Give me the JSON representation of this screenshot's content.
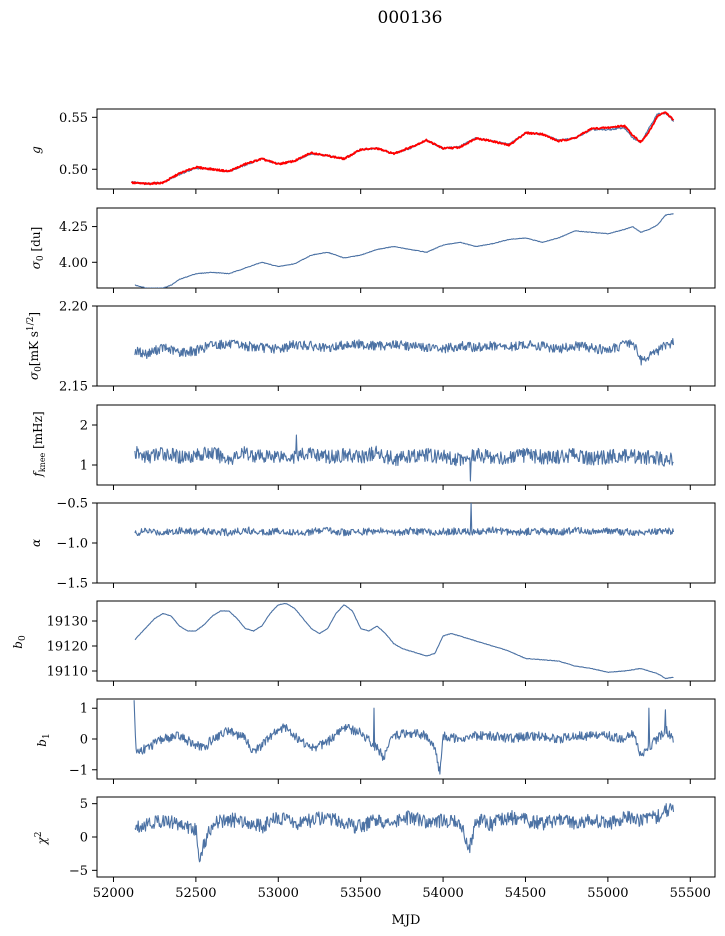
{
  "title": "000136",
  "xlabel": "MJD",
  "x_ticks": [
    "52000",
    "52500",
    "53000",
    "53500",
    "54000",
    "54500",
    "55000",
    "55500"
  ],
  "colors": {
    "series": "#4c72a4",
    "fit": "#ff0000",
    "axes": "#000000"
  },
  "chart_data": [
    {
      "type": "line",
      "ylabel": "g",
      "xlim": [
        51900,
        55650
      ],
      "ylim": [
        0.481,
        0.558
      ],
      "yticks": [
        "0.50",
        "0.55"
      ],
      "ytick_values": [
        0.5,
        0.55
      ],
      "series": [
        {
          "x": [
            52110,
            52200,
            52300,
            52400,
            52500,
            52600,
            52700,
            52800,
            52900,
            53000,
            53100,
            53200,
            53300,
            53400,
            53500,
            53600,
            53700,
            53800,
            53900,
            54000,
            54100,
            54200,
            54300,
            54400,
            54500,
            54600,
            54700,
            54800,
            54900,
            55000,
            55100,
            55150,
            55200,
            55250,
            55300,
            55350,
            55400
          ],
          "y": [
            0.488,
            0.486,
            0.487,
            0.495,
            0.501,
            0.5,
            0.498,
            0.504,
            0.51,
            0.505,
            0.508,
            0.515,
            0.513,
            0.51,
            0.519,
            0.52,
            0.515,
            0.52,
            0.528,
            0.52,
            0.522,
            0.53,
            0.527,
            0.524,
            0.535,
            0.534,
            0.528,
            0.53,
            0.538,
            0.538,
            0.54,
            0.53,
            0.526,
            0.54,
            0.553,
            0.554,
            0.546
          ]
        },
        {
          "x": [
            52110,
            52200,
            52300,
            52400,
            52500,
            52600,
            52700,
            52800,
            52900,
            53000,
            53100,
            53200,
            53300,
            53400,
            53500,
            53600,
            53700,
            53800,
            53900,
            54000,
            54100,
            54200,
            54300,
            54400,
            54500,
            54600,
            54700,
            54800,
            54900,
            55000,
            55100,
            55150,
            55200,
            55250,
            55300,
            55350,
            55400
          ],
          "y": [
            0.487,
            0.486,
            0.487,
            0.496,
            0.502,
            0.5,
            0.498,
            0.505,
            0.51,
            0.505,
            0.508,
            0.516,
            0.513,
            0.51,
            0.519,
            0.52,
            0.515,
            0.521,
            0.528,
            0.52,
            0.521,
            0.53,
            0.527,
            0.523,
            0.535,
            0.534,
            0.527,
            0.53,
            0.539,
            0.54,
            0.542,
            0.533,
            0.526,
            0.536,
            0.551,
            0.555,
            0.547
          ]
        }
      ]
    },
    {
      "type": "line",
      "ylabel": "σ0 [du]",
      "xlim": [
        51900,
        55650
      ],
      "ylim": [
        3.82,
        4.38
      ],
      "yticks": [
        "4.00",
        "4.25"
      ],
      "ytick_values": [
        4.0,
        4.25
      ],
      "series": [
        {
          "x": [
            52130,
            52200,
            52300,
            52350,
            52400,
            52500,
            52600,
            52700,
            52800,
            52900,
            53000,
            53100,
            53200,
            53300,
            53400,
            53500,
            53600,
            53700,
            53800,
            53900,
            54000,
            54100,
            54200,
            54300,
            54400,
            54500,
            54600,
            54700,
            54800,
            54900,
            55000,
            55100,
            55150,
            55200,
            55250,
            55300,
            55350,
            55400
          ],
          "y": [
            3.84,
            3.82,
            3.82,
            3.84,
            3.88,
            3.92,
            3.93,
            3.92,
            3.96,
            4.0,
            3.97,
            3.99,
            4.05,
            4.07,
            4.03,
            4.05,
            4.09,
            4.11,
            4.09,
            4.07,
            4.12,
            4.14,
            4.11,
            4.13,
            4.16,
            4.17,
            4.14,
            4.17,
            4.22,
            4.21,
            4.2,
            4.23,
            4.25,
            4.21,
            4.23,
            4.26,
            4.33,
            4.34
          ]
        }
      ]
    },
    {
      "type": "line",
      "ylabel": "σ0 [mK s^1/2]",
      "xlim": [
        51900,
        55650
      ],
      "ylim": [
        2.15,
        2.2
      ],
      "yticks": [
        "2.15",
        "2.20"
      ],
      "ytick_values": [
        2.15,
        2.2
      ],
      "series": [
        {
          "x": [
            52130,
            52200,
            52300,
            52400,
            52500,
            52600,
            52700,
            52800,
            52900,
            53000,
            53100,
            53200,
            53300,
            53400,
            53500,
            53600,
            53700,
            53800,
            53900,
            54000,
            54100,
            54200,
            54300,
            54400,
            54500,
            54600,
            54700,
            54800,
            54900,
            55000,
            55100,
            55150,
            55200,
            55250,
            55300,
            55350,
            55400
          ],
          "y": [
            2.172,
            2.17,
            2.174,
            2.171,
            2.172,
            2.176,
            2.176,
            2.175,
            2.174,
            2.173,
            2.176,
            2.175,
            2.173,
            2.176,
            2.176,
            2.175,
            2.176,
            2.175,
            2.174,
            2.173,
            2.175,
            2.174,
            2.175,
            2.174,
            2.176,
            2.175,
            2.173,
            2.175,
            2.174,
            2.172,
            2.176,
            2.178,
            2.166,
            2.169,
            2.172,
            2.175,
            2.178
          ]
        }
      ]
    },
    {
      "type": "line",
      "ylabel": "fknee [mHz]",
      "xlim": [
        51900,
        55650
      ],
      "ylim": [
        0.5,
        2.5
      ],
      "yticks": [
        "1",
        "2"
      ],
      "ytick_values": [
        1,
        2
      ],
      "series": [
        {
          "x": [
            52130,
            52200,
            52300,
            52400,
            52500,
            52600,
            52700,
            52800,
            52900,
            53000,
            53100,
            53200,
            53300,
            53400,
            53500,
            53600,
            53700,
            53800,
            53900,
            54000,
            54100,
            54200,
            54300,
            54400,
            54500,
            54600,
            54700,
            54800,
            54900,
            55000,
            55100,
            55200,
            55300,
            55400
          ],
          "y": [
            1.3,
            1.2,
            1.3,
            1.2,
            1.25,
            1.3,
            1.15,
            1.3,
            1.2,
            1.25,
            1.2,
            1.3,
            1.2,
            1.25,
            1.2,
            1.3,
            1.15,
            1.2,
            1.25,
            1.2,
            1.15,
            1.25,
            1.2,
            1.15,
            1.25,
            1.2,
            1.2,
            1.25,
            1.15,
            1.2,
            1.25,
            1.2,
            1.15,
            1.15
          ]
        }
      ]
    },
    {
      "type": "line",
      "ylabel": "α",
      "xlim": [
        51900,
        55650
      ],
      "ylim": [
        -1.5,
        -0.5
      ],
      "yticks": [
        "-1.5",
        "-1.0",
        "-0.5"
      ],
      "ytick_values": [
        -1.5,
        -1.0,
        -0.5
      ],
      "series": [
        {
          "x": [
            52130,
            52200,
            52300,
            52400,
            52500,
            52600,
            52700,
            52800,
            52900,
            53000,
            53100,
            53200,
            53300,
            53400,
            53500,
            53600,
            53700,
            53800,
            53900,
            54000,
            54100,
            54200,
            54300,
            54400,
            54500,
            54600,
            54700,
            54800,
            54900,
            55000,
            55100,
            55200,
            55300,
            55400
          ],
          "y": [
            -0.88,
            -0.85,
            -0.87,
            -0.84,
            -0.86,
            -0.85,
            -0.87,
            -0.84,
            -0.86,
            -0.85,
            -0.87,
            -0.86,
            -0.84,
            -0.87,
            -0.86,
            -0.85,
            -0.87,
            -0.85,
            -0.86,
            -0.86,
            -0.85,
            -0.87,
            -0.84,
            -0.86,
            -0.86,
            -0.85,
            -0.87,
            -0.84,
            -0.86,
            -0.85,
            -0.86,
            -0.87,
            -0.85,
            -0.86
          ]
        }
      ]
    },
    {
      "type": "line",
      "ylabel": "b0",
      "xlim": [
        51900,
        55650
      ],
      "ylim": [
        19106,
        19138
      ],
      "yticks": [
        "19110",
        "19120",
        "19130"
      ],
      "ytick_values": [
        19110,
        19120,
        19130
      ],
      "series": [
        {
          "x": [
            52130,
            52150,
            52200,
            52250,
            52300,
            52350,
            52400,
            52450,
            52500,
            52550,
            52600,
            52650,
            52700,
            52750,
            52800,
            52850,
            52900,
            52950,
            53000,
            53050,
            53100,
            53150,
            53200,
            53250,
            53300,
            53350,
            53400,
            53450,
            53500,
            53550,
            53600,
            53650,
            53700,
            53750,
            53800,
            53850,
            53900,
            53950,
            54000,
            54050,
            54100,
            54150,
            54200,
            54300,
            54400,
            54500,
            54600,
            54700,
            54800,
            54900,
            55000,
            55100,
            55200,
            55300,
            55350,
            55400
          ],
          "y": [
            19122.5,
            19124,
            19127.5,
            19131,
            19133,
            19132,
            19128,
            19126,
            19126,
            19128.5,
            19132,
            19134,
            19134,
            19131,
            19127,
            19126,
            19128,
            19133,
            19136.5,
            19137,
            19135,
            19131,
            19127,
            19125,
            19127,
            19133,
            19136.5,
            19134,
            19127,
            19126,
            19128,
            19125,
            19121,
            19119,
            19118,
            19117,
            19116,
            19117,
            19124,
            19125,
            19124,
            19123,
            19122,
            19120,
            19118,
            19115,
            19114.5,
            19114,
            19112,
            19111,
            19109.5,
            19110,
            19111,
            19109,
            19107,
            19107.5
          ]
        }
      ]
    },
    {
      "type": "line",
      "ylabel": "b1",
      "xlim": [
        51900,
        55650
      ],
      "ylim": [
        -1.3,
        1.3
      ],
      "yticks": [
        "-1",
        "0",
        "1"
      ],
      "ytick_values": [
        -1,
        0,
        1
      ],
      "series": [
        {
          "x": [
            52125,
            52135,
            52140,
            52200,
            52300,
            52400,
            52500,
            52550,
            52600,
            52700,
            52800,
            52850,
            52900,
            53000,
            53050,
            53100,
            53200,
            53300,
            53400,
            53500,
            53600,
            53640,
            53700,
            53800,
            53900,
            53950,
            53980,
            54000,
            54100,
            54200,
            54300,
            54400,
            54500,
            54600,
            54700,
            54800,
            54900,
            55000,
            55100,
            55150,
            55200,
            55300,
            55350,
            55400
          ],
          "y": [
            1.2,
            -0.3,
            -0.4,
            -0.3,
            0.0,
            0.1,
            -0.2,
            -0.3,
            0.0,
            0.3,
            0.0,
            -0.4,
            -0.2,
            0.3,
            0.4,
            0.1,
            -0.3,
            -0.1,
            0.4,
            0.2,
            -0.3,
            -0.6,
            0.1,
            0.2,
            0.1,
            -0.3,
            -1.1,
            0.1,
            0.0,
            0.1,
            0.1,
            0.0,
            0.1,
            0.1,
            0.0,
            0.1,
            0.1,
            0.1,
            0.0,
            0.2,
            -0.5,
            0.0,
            0.3,
            0.0
          ]
        }
      ]
    },
    {
      "type": "line",
      "ylabel": "χ2",
      "xlim": [
        51900,
        55650
      ],
      "ylim": [
        -6,
        6
      ],
      "yticks": [
        "-5",
        "0",
        "5"
      ],
      "ytick_values": [
        -5,
        0,
        5
      ],
      "series": [
        {
          "x": [
            52130,
            52200,
            52300,
            52400,
            52500,
            52520,
            52600,
            52700,
            52800,
            52900,
            53000,
            53100,
            53200,
            53300,
            53400,
            53500,
            53600,
            53700,
            53800,
            53900,
            54000,
            54100,
            54160,
            54200,
            54300,
            54400,
            54500,
            54600,
            54700,
            54800,
            54900,
            55000,
            55100,
            55200,
            55300,
            55350,
            55400
          ],
          "y": [
            1.5,
            2.0,
            2.5,
            2.0,
            1.0,
            -3.0,
            2.0,
            2.5,
            2.5,
            1.5,
            3.0,
            2.0,
            2.5,
            3.0,
            2.0,
            1.5,
            2.5,
            2.0,
            3.0,
            2.0,
            2.5,
            2.0,
            -1.5,
            2.5,
            2.0,
            3.0,
            2.5,
            2.0,
            2.5,
            2.0,
            2.5,
            2.0,
            3.0,
            2.5,
            3.0,
            4.0,
            4.0
          ]
        }
      ]
    }
  ]
}
